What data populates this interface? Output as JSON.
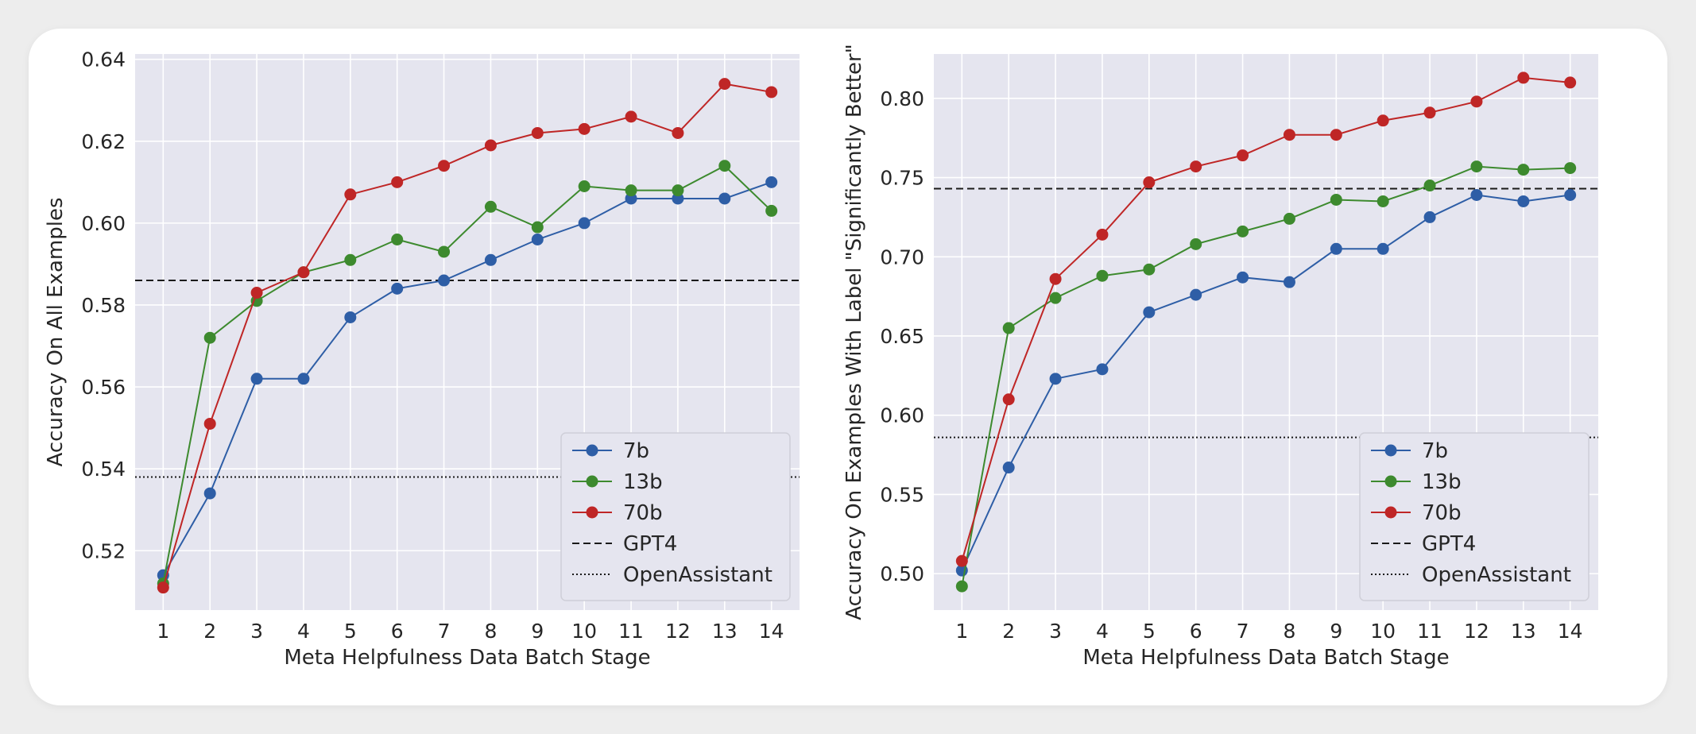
{
  "chart_data": [
    {
      "type": "line",
      "xlabel": "Meta Helpfulness Data Batch Stage",
      "ylabel": "Accuracy On All Examples",
      "x": [
        1,
        2,
        3,
        4,
        5,
        6,
        7,
        8,
        9,
        10,
        11,
        12,
        13,
        14
      ],
      "xlim": [
        0.4,
        14.6
      ],
      "ylim": [
        0.5055,
        0.6413
      ],
      "yticks": [
        0.52,
        0.54,
        0.56,
        0.58,
        0.6,
        0.62,
        0.64
      ],
      "ytick_labels": [
        "0.52",
        "0.54",
        "0.56",
        "0.58",
        "0.60",
        "0.62",
        "0.64"
      ],
      "xtick_labels": [
        "1",
        "2",
        "3",
        "4",
        "5",
        "6",
        "7",
        "8",
        "9",
        "10",
        "11",
        "12",
        "13",
        "14"
      ],
      "series": [
        {
          "name": "7b",
          "color": "#2e5ea6",
          "values": [
            0.514,
            0.534,
            0.562,
            0.562,
            0.577,
            0.584,
            0.586,
            0.591,
            0.596,
            0.6,
            0.606,
            0.606,
            0.606,
            0.61
          ]
        },
        {
          "name": "13b",
          "color": "#3d8a2e",
          "values": [
            0.512,
            0.572,
            0.581,
            0.588,
            0.591,
            0.596,
            0.593,
            0.604,
            0.599,
            0.609,
            0.608,
            0.608,
            0.614,
            0.603
          ]
        },
        {
          "name": "70b",
          "color": "#bf2626",
          "values": [
            0.511,
            0.551,
            0.583,
            0.588,
            0.607,
            0.61,
            0.614,
            0.619,
            0.622,
            0.623,
            0.626,
            0.622,
            0.634,
            0.632
          ]
        }
      ],
      "hlines": [
        {
          "name": "GPT4",
          "value": 0.586,
          "style": "dashed"
        },
        {
          "name": "OpenAssistant",
          "value": 0.538,
          "style": "dotted"
        }
      ],
      "grid": true,
      "legend": "bottom-right"
    },
    {
      "type": "line",
      "xlabel": "Meta Helpfulness Data Batch Stage",
      "ylabel": "Accuracy On Examples With Label \"Significantly Better\"",
      "x": [
        1,
        2,
        3,
        4,
        5,
        6,
        7,
        8,
        9,
        10,
        11,
        12,
        13,
        14
      ],
      "xlim": [
        0.4,
        14.6
      ],
      "ylim": [
        0.477,
        0.828
      ],
      "yticks": [
        0.5,
        0.55,
        0.6,
        0.65,
        0.7,
        0.75,
        0.8
      ],
      "ytick_labels": [
        "0.50",
        "0.55",
        "0.60",
        "0.65",
        "0.70",
        "0.75",
        "0.80"
      ],
      "xtick_labels": [
        "1",
        "2",
        "3",
        "4",
        "5",
        "6",
        "7",
        "8",
        "9",
        "10",
        "11",
        "12",
        "13",
        "14"
      ],
      "series": [
        {
          "name": "7b",
          "color": "#2e5ea6",
          "values": [
            0.502,
            0.567,
            0.623,
            0.629,
            0.665,
            0.676,
            0.687,
            0.684,
            0.705,
            0.705,
            0.725,
            0.739,
            0.735,
            0.739
          ]
        },
        {
          "name": "13b",
          "color": "#3d8a2e",
          "values": [
            0.492,
            0.655,
            0.674,
            0.688,
            0.692,
            0.708,
            0.716,
            0.724,
            0.736,
            0.735,
            0.745,
            0.757,
            0.755,
            0.756
          ]
        },
        {
          "name": "70b",
          "color": "#bf2626",
          "values": [
            0.508,
            0.61,
            0.686,
            0.714,
            0.747,
            0.757,
            0.764,
            0.777,
            0.777,
            0.786,
            0.791,
            0.798,
            0.813,
            0.81
          ]
        }
      ],
      "hlines": [
        {
          "name": "GPT4",
          "value": 0.743,
          "style": "dashed"
        },
        {
          "name": "OpenAssistant",
          "value": 0.586,
          "style": "dotted"
        }
      ],
      "grid": true,
      "legend": "bottom-right"
    }
  ]
}
